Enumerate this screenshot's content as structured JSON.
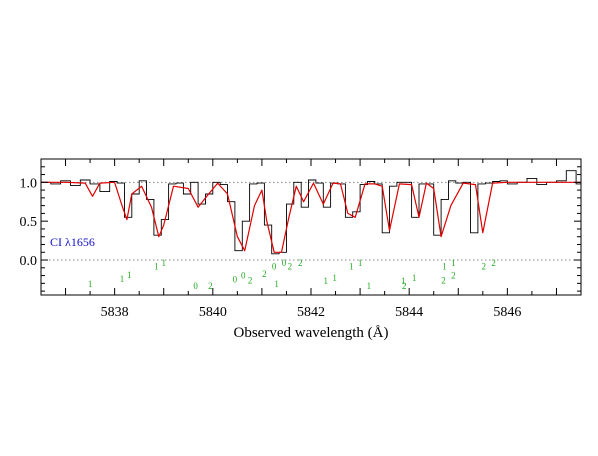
{
  "chart_data": {
    "type": "line",
    "xlabel": "Observed wavelength (Å)",
    "ylabel": "",
    "xlim": [
      5836.5,
      5847.5
    ],
    "ylim": [
      -0.45,
      1.3
    ],
    "x_ticks": [
      5838,
      5840,
      5842,
      5844,
      5846
    ],
    "y_ticks": [
      0.0,
      0.5,
      1.0
    ],
    "x_tick_labels": [
      "5838",
      "5840",
      "5842",
      "5844",
      "5846"
    ],
    "y_tick_labels": [
      "0.0",
      "0.5",
      "1.0"
    ],
    "reference_lines": [
      1.0,
      0.0
    ],
    "annotation": "CI λ1656",
    "colors": {
      "data": "#000000",
      "model": "#e00000",
      "ticks": "#22aa22",
      "annotation": "#1010cc",
      "reference": "#888888"
    },
    "series": [
      {
        "style": "step",
        "x": [
          5836.5,
          5836.7,
          5836.9,
          5837.1,
          5837.3,
          5837.5,
          5837.7,
          5837.9,
          5838.05,
          5838.2,
          5838.35,
          5838.5,
          5838.65,
          5838.8,
          5838.95,
          5839.1,
          5839.25,
          5839.4,
          5839.55,
          5839.7,
          5839.85,
          5840.0,
          5840.15,
          5840.3,
          5840.45,
          5840.6,
          5840.75,
          5840.9,
          5841.05,
          5841.2,
          5841.35,
          5841.5,
          5841.65,
          5841.8,
          5841.95,
          5842.1,
          5842.25,
          5842.4,
          5842.55,
          5842.7,
          5842.85,
          5843.0,
          5843.15,
          5843.3,
          5843.45,
          5843.6,
          5843.75,
          5843.9,
          5844.05,
          5844.2,
          5844.35,
          5844.5,
          5844.65,
          5844.8,
          5844.95,
          5845.1,
          5845.25,
          5845.4,
          5845.55,
          5845.7,
          5845.85,
          5846.0,
          5846.2,
          5846.4,
          5846.6,
          5846.8,
          5847.0,
          5847.2,
          5847.4
        ],
        "y": [
          1.0,
          0.98,
          1.02,
          0.96,
          1.03,
          0.98,
          0.88,
          1.01,
          0.99,
          0.55,
          0.85,
          1.02,
          0.78,
          0.32,
          0.52,
          0.98,
          0.99,
          0.85,
          1.0,
          0.72,
          0.85,
          1.0,
          0.97,
          0.75,
          0.12,
          0.5,
          0.98,
          0.99,
          0.45,
          0.08,
          0.1,
          0.72,
          1.0,
          0.68,
          1.03,
          0.99,
          0.68,
          0.99,
          0.98,
          0.55,
          0.62,
          0.97,
          1.01,
          0.98,
          0.35,
          0.95,
          1.0,
          1.0,
          0.55,
          0.98,
          0.98,
          0.32,
          0.78,
          1.02,
          0.99,
          1.0,
          0.35,
          0.98,
          0.99,
          1.01,
          1.02,
          0.98,
          1.0,
          1.05,
          0.97,
          1.0,
          1.02,
          1.15,
          0.98
        ]
      },
      {
        "style": "line",
        "x": [
          5836.5,
          5837.0,
          5837.4,
          5837.55,
          5837.7,
          5838.0,
          5838.15,
          5838.25,
          5838.35,
          5838.55,
          5838.75,
          5838.9,
          5839.0,
          5839.2,
          5839.5,
          5839.7,
          5839.85,
          5840.1,
          5840.3,
          5840.5,
          5840.65,
          5840.85,
          5841.0,
          5841.1,
          5841.25,
          5841.4,
          5841.55,
          5841.7,
          5841.85,
          5842.05,
          5842.25,
          5842.45,
          5842.6,
          5842.75,
          5842.9,
          5843.1,
          5843.3,
          5843.45,
          5843.6,
          5843.8,
          5844.05,
          5844.2,
          5844.35,
          5844.5,
          5844.65,
          5844.85,
          5845.1,
          5845.35,
          5845.5,
          5845.7,
          5846.0,
          5846.5,
          5847.0,
          5847.5
        ],
        "y": [
          1.0,
          1.0,
          0.99,
          0.82,
          0.99,
          1.0,
          0.7,
          0.52,
          0.85,
          0.95,
          0.68,
          0.3,
          0.45,
          0.95,
          0.92,
          0.68,
          0.8,
          0.99,
          0.85,
          0.3,
          0.12,
          0.7,
          0.9,
          0.5,
          0.1,
          0.1,
          0.55,
          0.95,
          0.75,
          0.99,
          0.72,
          0.99,
          0.98,
          0.6,
          0.55,
          0.98,
          0.98,
          0.95,
          0.38,
          0.98,
          0.97,
          0.55,
          0.99,
          0.92,
          0.3,
          0.7,
          0.99,
          0.97,
          0.35,
          0.99,
          1.0,
          1.0,
          1.0,
          1.0
        ]
      }
    ],
    "component_markers": [
      {
        "label": "1",
        "x": 5837.5,
        "y": -0.35
      },
      {
        "label": "1",
        "x": 5838.15,
        "y": -0.28
      },
      {
        "label": "1",
        "x": 5838.3,
        "y": -0.23
      },
      {
        "label": "1",
        "x": 5838.85,
        "y": -0.12
      },
      {
        "label": "1",
        "x": 5839.0,
        "y": -0.08
      },
      {
        "label": "0",
        "x": 5839.65,
        "y": -0.37
      },
      {
        "label": "2",
        "x": 5839.95,
        "y": -0.37
      },
      {
        "label": "0",
        "x": 5840.45,
        "y": -0.29
      },
      {
        "label": "0",
        "x": 5840.62,
        "y": -0.24
      },
      {
        "label": "2",
        "x": 5840.76,
        "y": -0.3
      },
      {
        "label": "2",
        "x": 5841.05,
        "y": -0.22
      },
      {
        "label": "1",
        "x": 5841.3,
        "y": -0.35
      },
      {
        "label": "0",
        "x": 5841.25,
        "y": -0.12
      },
      {
        "label": "0",
        "x": 5841.45,
        "y": -0.08
      },
      {
        "label": "2",
        "x": 5841.57,
        "y": -0.12
      },
      {
        "label": "2",
        "x": 5841.78,
        "y": -0.08
      },
      {
        "label": "1",
        "x": 5842.3,
        "y": -0.31
      },
      {
        "label": "1",
        "x": 5842.48,
        "y": -0.27
      },
      {
        "label": "1",
        "x": 5842.82,
        "y": -0.12
      },
      {
        "label": "1",
        "x": 5843.0,
        "y": -0.08
      },
      {
        "label": "1",
        "x": 5843.18,
        "y": -0.37
      },
      {
        "label": "1",
        "x": 5843.88,
        "y": -0.31
      },
      {
        "label": "2",
        "x": 5843.9,
        "y": -0.37
      },
      {
        "label": "1",
        "x": 5844.1,
        "y": -0.27
      },
      {
        "label": "2",
        "x": 5844.7,
        "y": -0.3
      },
      {
        "label": "1",
        "x": 5844.72,
        "y": -0.12
      },
      {
        "label": "2",
        "x": 5844.9,
        "y": -0.24
      },
      {
        "label": "1",
        "x": 5844.9,
        "y": -0.08
      },
      {
        "label": "2",
        "x": 5845.52,
        "y": -0.12
      },
      {
        "label": "2",
        "x": 5845.72,
        "y": -0.08
      }
    ]
  }
}
